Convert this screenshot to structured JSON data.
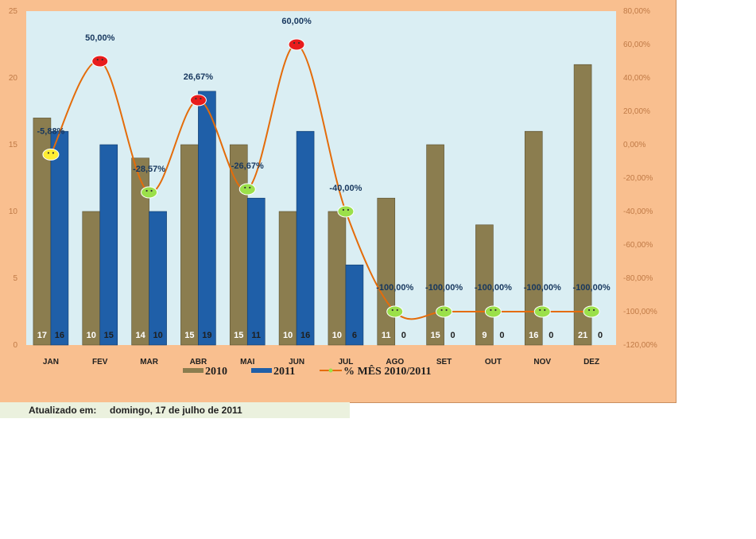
{
  "chart_data": {
    "type": "bar",
    "categories": [
      "JAN",
      "FEV",
      "MAR",
      "ABR",
      "MAI",
      "JUN",
      "JUL",
      "AGO",
      "SET",
      "OUT",
      "NOV",
      "DEZ"
    ],
    "series": [
      {
        "name": "2010",
        "values": [
          17,
          10,
          14,
          15,
          15,
          10,
          10,
          11,
          15,
          9,
          16,
          21
        ],
        "color": "#8b7d4f"
      },
      {
        "name": "2011",
        "values": [
          16,
          15,
          10,
          19,
          11,
          16,
          6,
          0,
          0,
          0,
          0,
          0
        ],
        "color": "#1f5fa8"
      },
      {
        "name": "% MÊS 2010/2011",
        "values": [
          -5.88,
          50,
          -28.57,
          26.67,
          -26.67,
          60,
          -40,
          -100,
          -100,
          -100,
          -100,
          -100
        ],
        "color": "#e46c0a"
      }
    ],
    "pct_labels": [
      "-5,88%",
      "50,00%",
      "-28,57%",
      "26,67%",
      "-26,67%",
      "60,00%",
      "-40,00%",
      "-100,00%",
      "-100,00%",
      "-100,00%",
      "-100,00%",
      "-100,00%"
    ],
    "marker_status": [
      "neutral",
      "bad",
      "good",
      "bad",
      "good",
      "bad",
      "good",
      "good",
      "good",
      "good",
      "good",
      "good"
    ],
    "marker_colors": {
      "neutral": "#ffee33",
      "bad": "#e81c1c",
      "good": "#9be04a"
    },
    "y_left": {
      "min": 0,
      "max": 25,
      "ticks": [
        "0",
        "5",
        "10",
        "15",
        "20",
        "25"
      ]
    },
    "y_right": {
      "min": -120,
      "max": 80,
      "ticks": [
        "-120,00%",
        "-100,00%",
        "-80,00%",
        "-60,00%",
        "-40,00%",
        "-20,00%",
        "0,00%",
        "20,00%",
        "40,00%",
        "60,00%",
        "80,00%"
      ]
    },
    "legend_position": "bottom",
    "grid": false
  },
  "footer": {
    "label": "Atualizado em:",
    "date": "domingo, 17 de julho de 2011"
  }
}
